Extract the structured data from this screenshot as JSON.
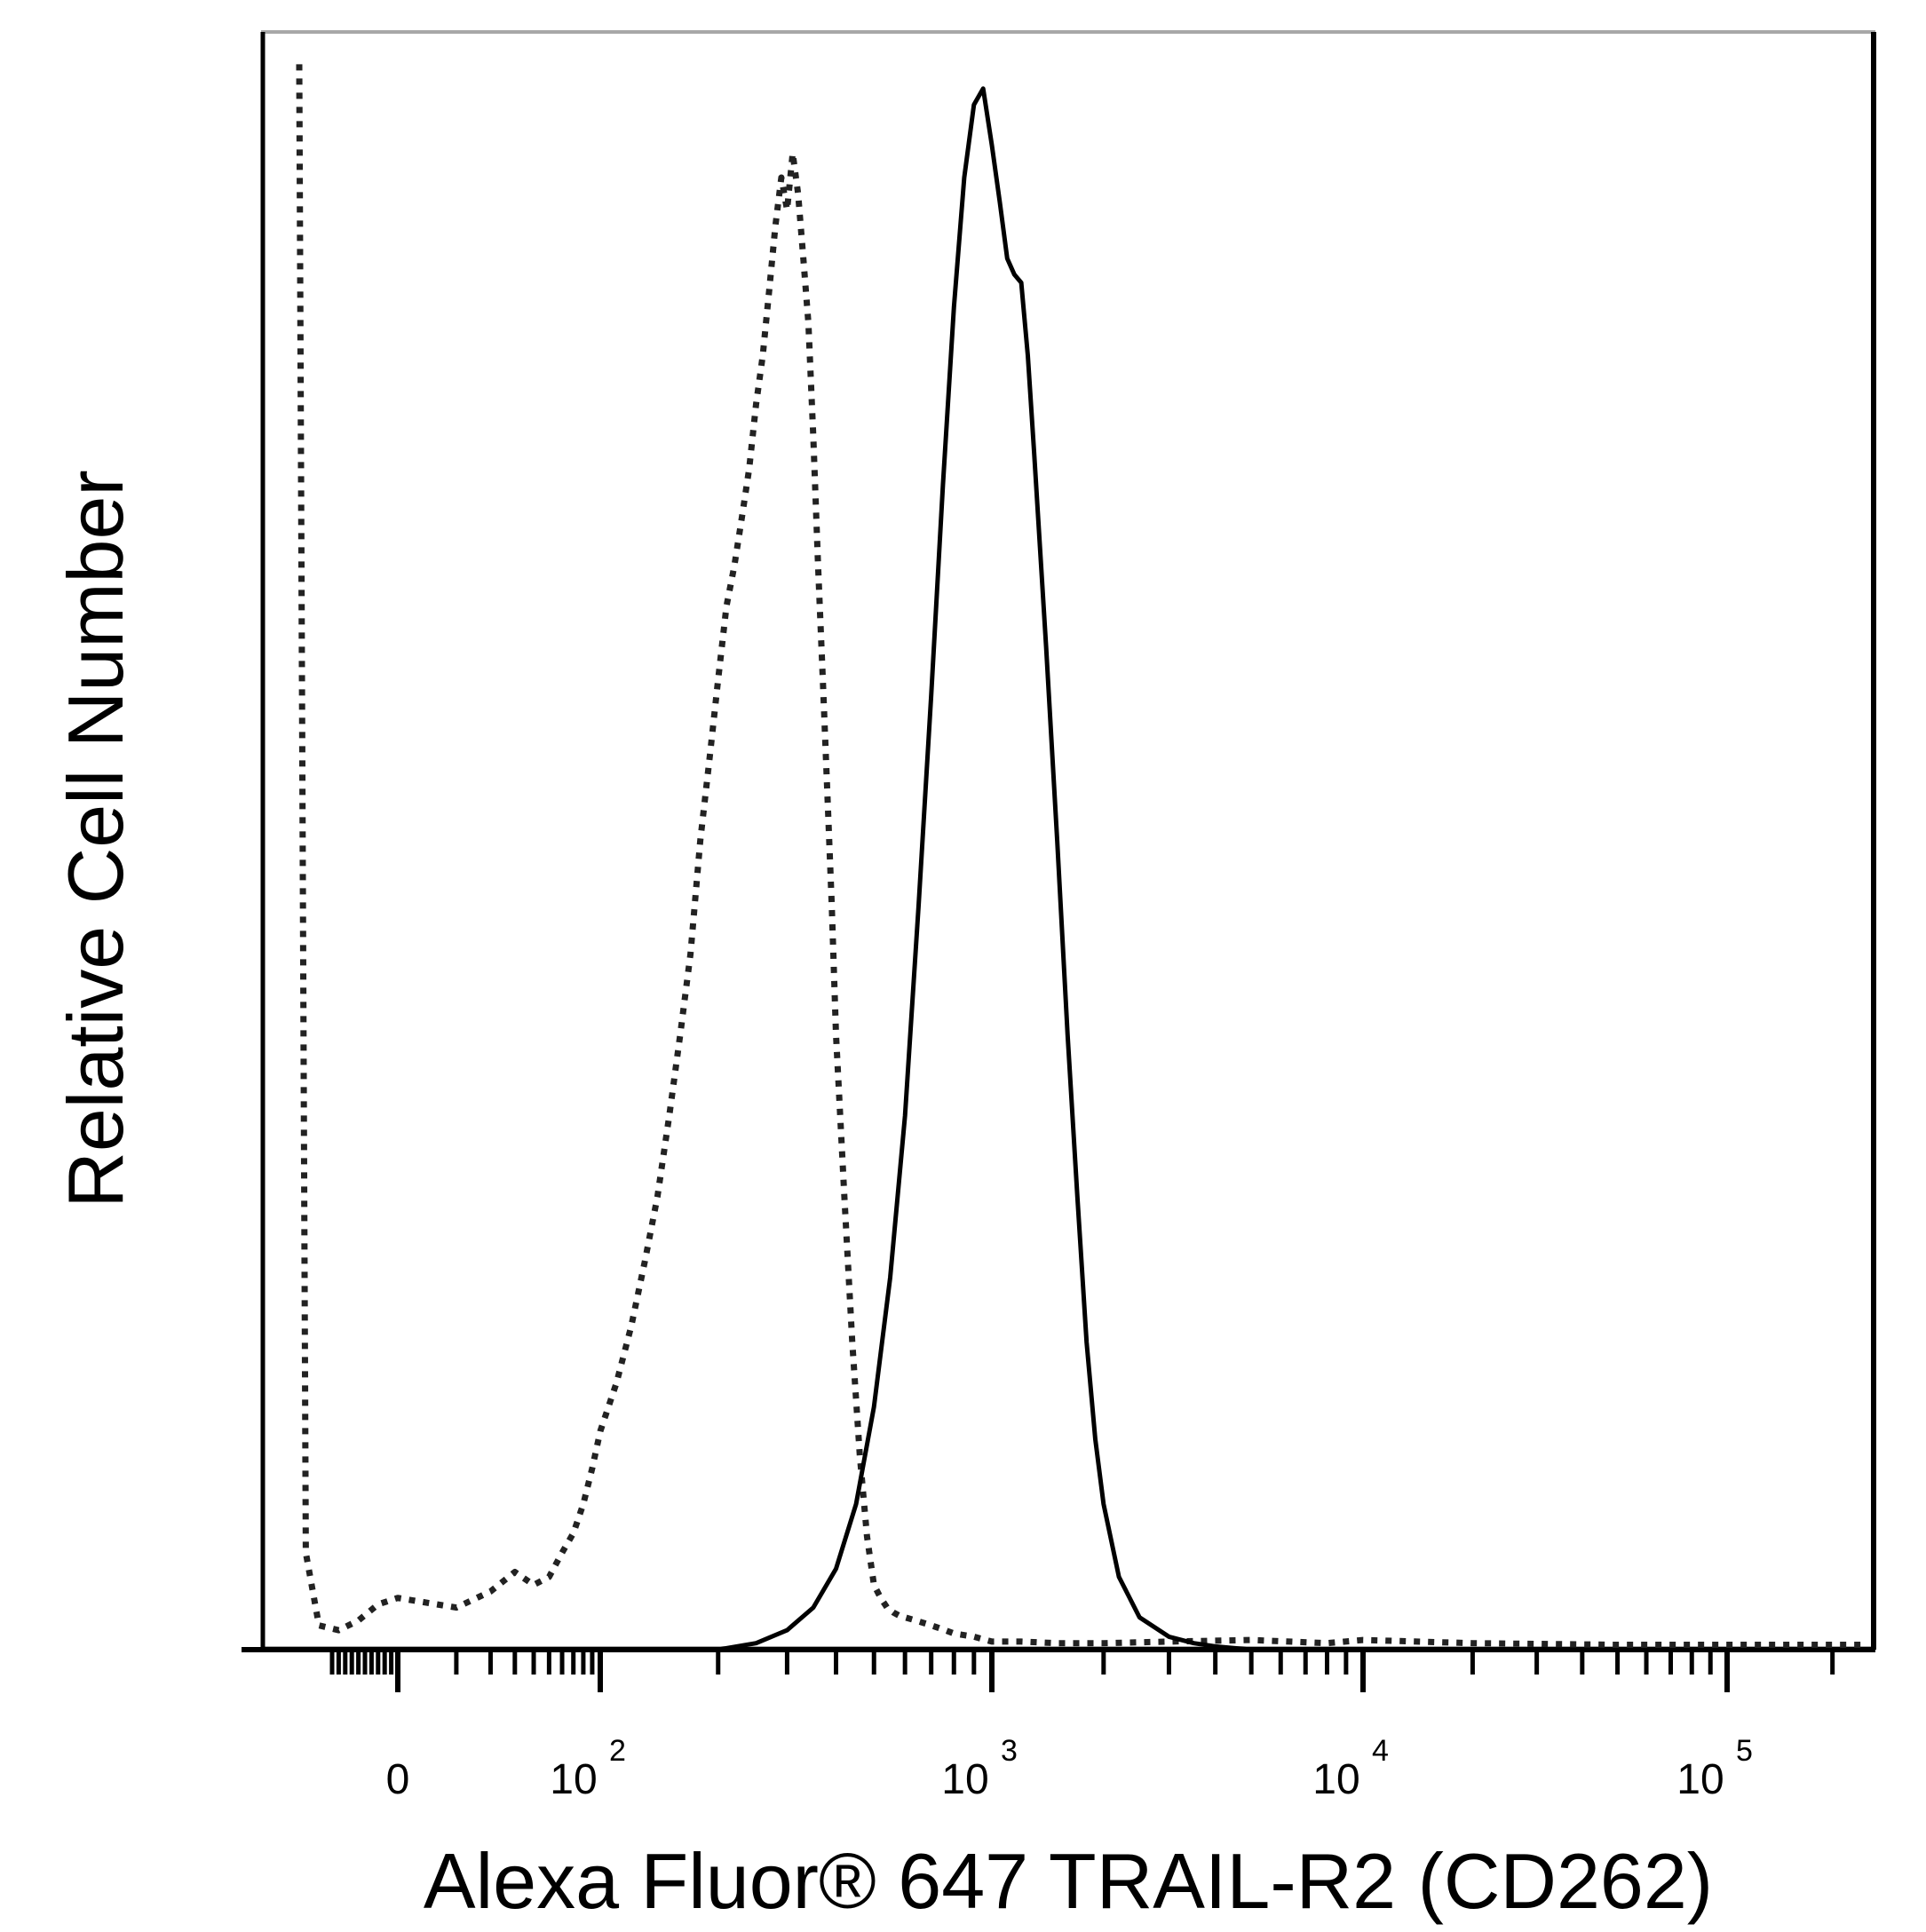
{
  "chart_data": {
    "type": "line",
    "title": "",
    "xlabel": "Alexa Fluor® 647  TRAIL-R2 (CD262)",
    "ylabel": "Relative Cell Number",
    "x_scale": "biexponential",
    "x_tick_labels": [
      {
        "value": 0,
        "base": "0",
        "exp": ""
      },
      {
        "value": 100,
        "base": "10",
        "exp": "2"
      },
      {
        "value": 1000,
        "base": "10",
        "exp": "3"
      },
      {
        "value": 10000,
        "base": "10",
        "exp": "4"
      },
      {
        "value": 100000,
        "base": "10",
        "exp": "5"
      }
    ],
    "ylim": [
      0,
      100
    ],
    "grid": false,
    "legend": "none",
    "series": [
      {
        "style": "dotted",
        "color": "#222222",
        "x": [
          -150,
          -140,
          -120,
          -90,
          -60,
          -30,
          0,
          10,
          20,
          30,
          40,
          50,
          60,
          70,
          80,
          90,
          100,
          110,
          120,
          130,
          140,
          150,
          160,
          170,
          180,
          190,
          200,
          210,
          220,
          230,
          240,
          250,
          260,
          270,
          280,
          290,
          300,
          310,
          320,
          330,
          340,
          350,
          360,
          370,
          380,
          390,
          400,
          420,
          440,
          460,
          480,
          500,
          520,
          540,
          560,
          580,
          600,
          640,
          680,
          720,
          760,
          800,
          900,
          1000,
          1200,
          1500,
          2000,
          3000,
          5000,
          8000,
          10000,
          20000,
          50000,
          100000,
          250000
        ],
        "y": [
          98,
          6,
          1.5,
          1.2,
          1.8,
          2.8,
          3.2,
          2.6,
          3.6,
          4.8,
          4.0,
          4.5,
          6.0,
          7.2,
          9.0,
          11.2,
          13.5,
          16.5,
          20.0,
          24.0,
          28.0,
          33.0,
          38.0,
          43.0,
          50.0,
          55.0,
          60.0,
          64.5,
          67.0,
          70.0,
          73.0,
          77.0,
          80.0,
          84.0,
          88.0,
          91.0,
          89.0,
          92.5,
          90.0,
          86.0,
          82.0,
          75.0,
          67.0,
          60.0,
          53.0,
          46.0,
          38.0,
          28.0,
          19.0,
          12.0,
          7.0,
          4.0,
          3.2,
          2.6,
          2.3,
          2.1,
          2.0,
          1.8,
          1.6,
          1.4,
          1.2,
          1.0,
          0.8,
          0.5,
          0.5,
          0.4,
          0.4,
          0.5,
          0.6,
          0.4,
          0.6,
          0.4,
          0.3,
          0.3,
          0.3
        ]
      },
      {
        "style": "solid",
        "color": "#000000",
        "x": [
          200,
          250,
          300,
          350,
          400,
          450,
          500,
          550,
          600,
          650,
          700,
          750,
          800,
          850,
          900,
          950,
          1000,
          1050,
          1100,
          1150,
          1200,
          1250,
          1300,
          1400,
          1500,
          1600,
          1700,
          1800,
          1900,
          2000,
          2200,
          2500,
          3000,
          3500,
          4000,
          5000
        ],
        "y": [
          0.0,
          0.4,
          1.2,
          2.6,
          5.0,
          9.0,
          15.0,
          23.0,
          33.0,
          46.0,
          59.0,
          72.0,
          83.0,
          91.0,
          95.5,
          96.5,
          93.0,
          89.5,
          86.0,
          85.0,
          84.5,
          80.0,
          74.0,
          62.0,
          50.0,
          38.0,
          28.0,
          19.0,
          13.0,
          9.0,
          4.5,
          2.0,
          0.8,
          0.4,
          0.2,
          0.0
        ]
      }
    ]
  }
}
